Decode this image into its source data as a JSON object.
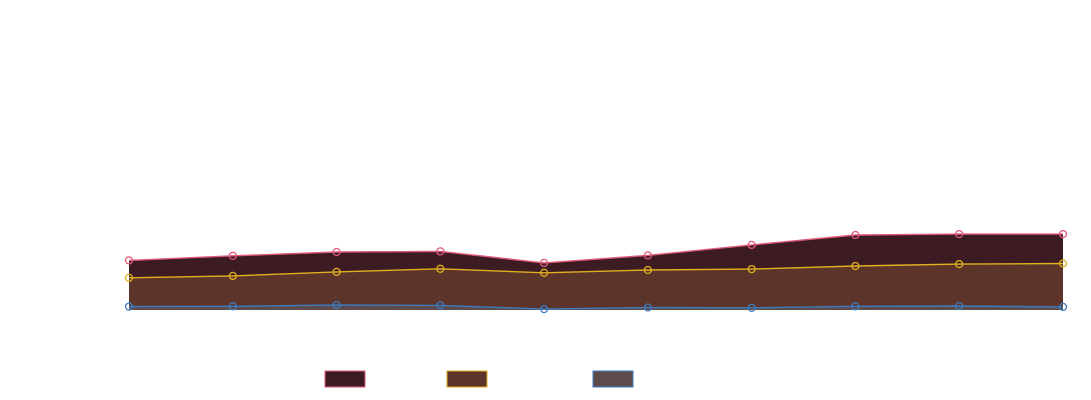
{
  "chart_data": {
    "type": "area",
    "stacked": true,
    "x": [
      1,
      2,
      3,
      4,
      5,
      6,
      7,
      8,
      9,
      10
    ],
    "ylim": [
      0,
      100
    ],
    "grid": false,
    "legend_position": "bottom",
    "series": [
      {
        "values": [
          1.1,
          1.2,
          1.6,
          1.5,
          0.3,
          0.8,
          0.7,
          1.2,
          1.3,
          1.0
        ],
        "fill": "#5d4a4a",
        "stroke": "#3d7bbf"
      },
      {
        "values": [
          9.3,
          9.8,
          10.7,
          11.8,
          11.7,
          12.1,
          12.5,
          13.0,
          13.5,
          14.0
        ],
        "fill": "#5c342a",
        "stroke": "#e0b020"
      },
      {
        "values": [
          5.6,
          6.5,
          6.4,
          5.6,
          3.2,
          4.7,
          7.8,
          10.0,
          9.7,
          9.5
        ],
        "fill": "#3c1c22",
        "stroke": "#e05a7a"
      }
    ]
  }
}
